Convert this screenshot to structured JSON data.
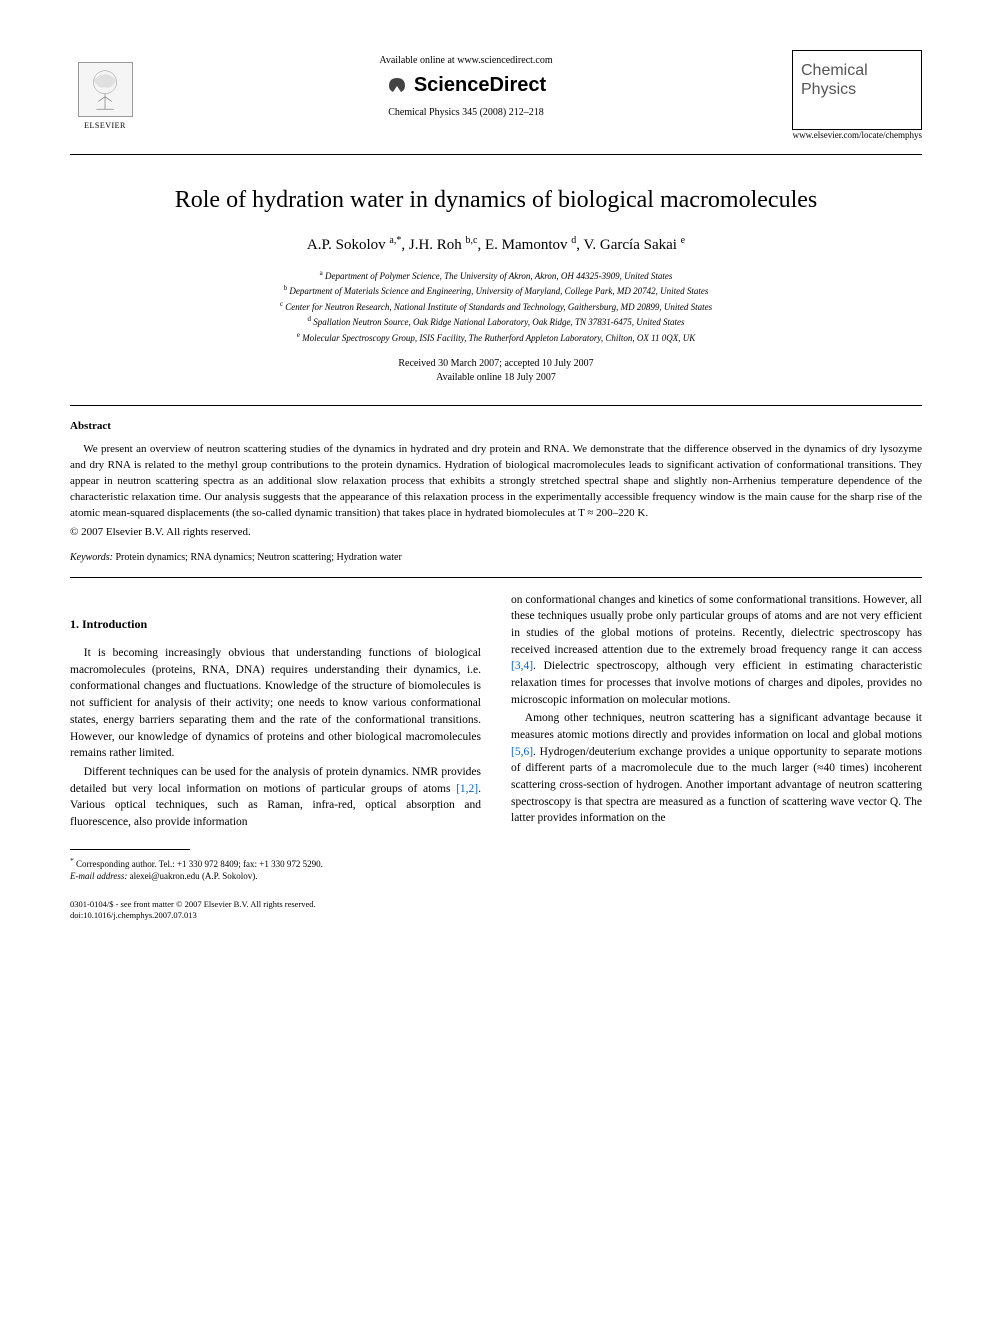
{
  "header": {
    "publisher": "ELSEVIER",
    "available_online": "Available online at www.sciencedirect.com",
    "platform": "ScienceDirect",
    "citation": "Chemical Physics 345 (2008) 212–218",
    "journal_name_l1": "Chemical",
    "journal_name_l2": "Physics",
    "journal_url": "www.elsevier.com/locate/chemphys"
  },
  "title": "Role of hydration water in dynamics of biological macromolecules",
  "authors_html": "A.P. Sokolov <sup>a,*</sup>, J.H. Roh <sup>b,c</sup>, E. Mamontov <sup>d</sup>, V. García Sakai <sup>e</sup>",
  "affiliations": [
    {
      "sup": "a",
      "text": "Department of Polymer Science, The University of Akron, Akron, OH 44325-3909, United States"
    },
    {
      "sup": "b",
      "text": "Department of Materials Science and Engineering, University of Maryland, College Park, MD 20742, United States"
    },
    {
      "sup": "c",
      "text": "Center for Neutron Research, National Institute of Standards and Technology, Gaithersburg, MD 20899, United States"
    },
    {
      "sup": "d",
      "text": "Spallation Neutron Source, Oak Ridge National Laboratory, Oak Ridge, TN 37831-6475, United States"
    },
    {
      "sup": "e",
      "text": "Molecular Spectroscopy Group, ISIS Facility, The Rutherford Appleton Laboratory, Chilton, OX 11 0QX, UK"
    }
  ],
  "dates": {
    "received_accepted": "Received 30 March 2007; accepted 10 July 2007",
    "available": "Available online 18 July 2007"
  },
  "abstract": {
    "label": "Abstract",
    "body": "We present an overview of neutron scattering studies of the dynamics in hydrated and dry protein and RNA. We demonstrate that the difference observed in the dynamics of dry lysozyme and dry RNA is related to the methyl group contributions to the protein dynamics. Hydration of biological macromolecules leads to significant activation of conformational transitions. They appear in neutron scattering spectra as an additional slow relaxation process that exhibits a strongly stretched spectral shape and slightly non-Arrhenius temperature dependence of the characteristic relaxation time. Our analysis suggests that the appearance of this relaxation process in the experimentally accessible frequency window is the main cause for the sharp rise of the atomic mean-squared displacements (the so-called dynamic transition) that takes place in hydrated biomolecules at T ≈ 200–220 K.",
    "copyright": "© 2007 Elsevier B.V. All rights reserved."
  },
  "keywords": {
    "label": "Keywords:",
    "text": "Protein dynamics; RNA dynamics; Neutron scattering; Hydration water"
  },
  "section1": {
    "heading": "1. Introduction",
    "col1_p1": "It is becoming increasingly obvious that understanding functions of biological macromolecules (proteins, RNA, DNA) requires understanding their dynamics, i.e. conformational changes and fluctuations. Knowledge of the structure of biomolecules is not sufficient for analysis of their activity; one needs to know various conformational states, energy barriers separating them and the rate of the conformational transitions. However, our knowledge of dynamics of proteins and other biological macromolecules remains rather limited.",
    "col1_p2_a": "Different techniques can be used for the analysis of protein dynamics. NMR provides detailed but very local information on motions of particular groups of atoms ",
    "col1_p2_ref": "[1,2]",
    "col1_p2_b": ". Various optical techniques, such as Raman, infra-red, optical absorption and fluorescence, also provide information",
    "col2_p1_a": "on conformational changes and kinetics of some conformational transitions. However, all these techniques usually probe only particular groups of atoms and are not very efficient in studies of the global motions of proteins. Recently, dielectric spectroscopy has received increased attention due to the extremely broad frequency range it can access ",
    "col2_p1_ref": "[3,4]",
    "col2_p1_b": ". Dielectric spectroscopy, although very efficient in estimating characteristic relaxation times for processes that involve motions of charges and dipoles, provides no microscopic information on molecular motions.",
    "col2_p2_a": "Among other techniques, neutron scattering has a significant advantage because it measures atomic motions directly and provides information on local and global motions ",
    "col2_p2_ref": "[5,6]",
    "col2_p2_b": ". Hydrogen/deuterium exchange provides a unique opportunity to separate motions of different parts of a macromolecule due to the much larger (≈40 times) incoherent scattering cross-section of hydrogen. Another important advantage of neutron scattering spectroscopy is that spectra are measured as a function of scattering wave vector Q. The latter provides information on the"
  },
  "footer": {
    "corresponding_line": "Corresponding author. Tel.: +1 330 972 8409; fax: +1 330 972 5290.",
    "email_label": "E-mail address:",
    "email": "alexei@uakron.edu",
    "email_name": "(A.P. Sokolov).",
    "issn": "0301-0104/$ - see front matter © 2007 Elsevier B.V. All rights reserved.",
    "doi": "doi:10.1016/j.chemphys.2007.07.013"
  },
  "colors": {
    "text": "#000000",
    "background": "#ffffff",
    "link": "#0066cc",
    "journal_gray": "#555555"
  },
  "typography": {
    "body_family": "Georgia, Times New Roman, serif",
    "title_size_pt": 18,
    "authors_size_pt": 11,
    "body_size_pt": 8.5,
    "abstract_size_pt": 8
  }
}
